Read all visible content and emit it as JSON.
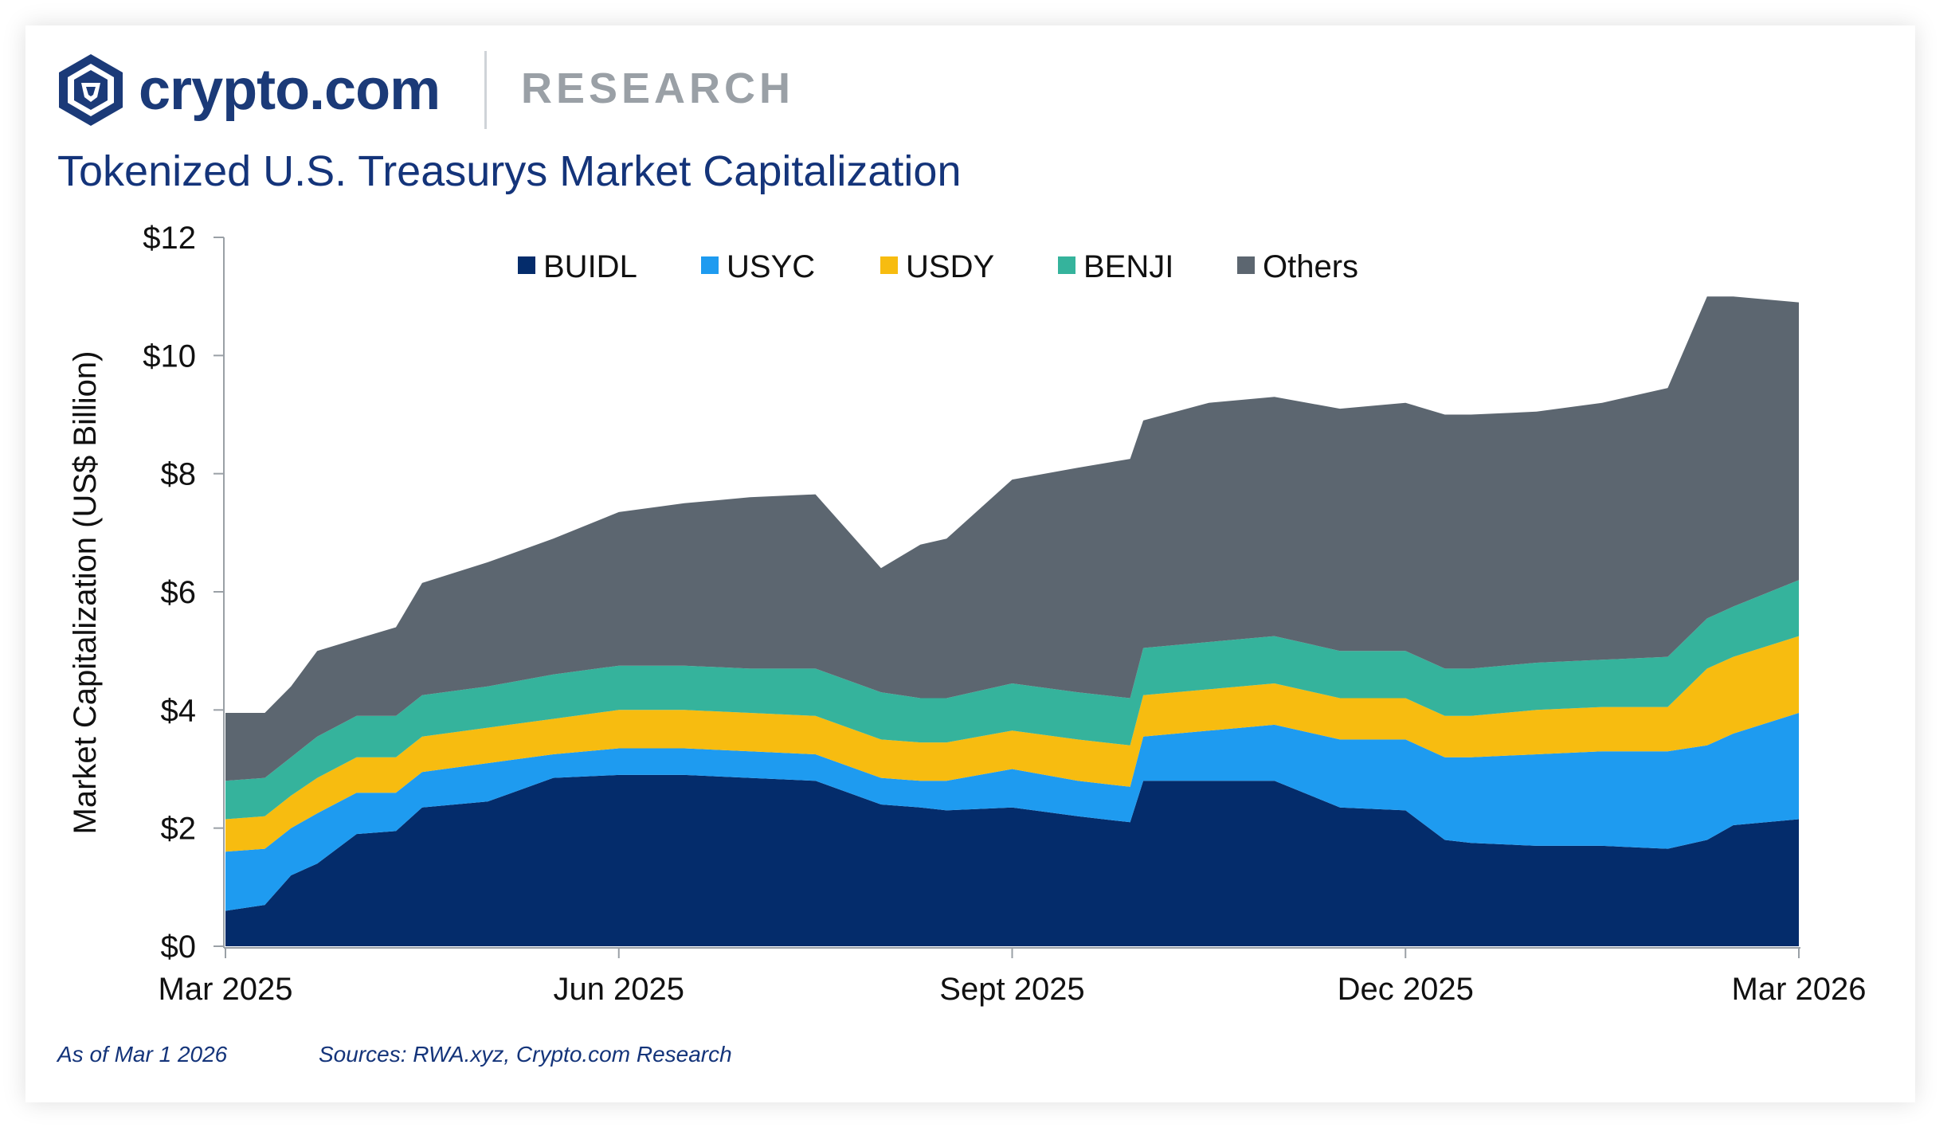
{
  "brand": {
    "name": "crypto.com",
    "section": "RESEARCH",
    "logo_icon": "crypto-com-lion-shield-icon"
  },
  "footer": {
    "as_of": "As of Mar 1 2026",
    "sources": "Sources: RWA.xyz, Crypto.com Research"
  },
  "chart_data": {
    "type": "area",
    "stacked": true,
    "title": "Tokenized U.S. Treasurys Market Capitalization",
    "ylabel": "Market Capitalization (US$ Billion)",
    "xlabel": "",
    "ylim": [
      0,
      12
    ],
    "yticks": [
      0,
      2,
      4,
      6,
      8,
      10,
      12
    ],
    "ytick_labels": [
      "$0",
      "$2",
      "$4",
      "$6",
      "$8",
      "$10",
      "$12"
    ],
    "xticks": [
      "Mar 2025",
      "Jun 2025",
      "Sept 2025",
      "Dec 2025",
      "Mar 2026"
    ],
    "xtick_positions": [
      0,
      3,
      6,
      9,
      12
    ],
    "x_unit": "months since Mar 2025",
    "legend_position": "top-center",
    "grid": false,
    "x": [
      0,
      0.3,
      0.5,
      0.7,
      1,
      1.3,
      1.5,
      2,
      2.5,
      3,
      3.5,
      4,
      4.5,
      5,
      5.3,
      5.5,
      6,
      6.5,
      6.9,
      7,
      7.5,
      8,
      8.5,
      9,
      9.3,
      9.5,
      10,
      10.5,
      11,
      11.3,
      11.5,
      12
    ],
    "series": [
      {
        "name": "BUIDL",
        "color": "#042c6b",
        "values": [
          0.6,
          0.7,
          1.2,
          1.4,
          1.9,
          1.95,
          2.35,
          2.45,
          2.85,
          2.9,
          2.9,
          2.85,
          2.8,
          2.4,
          2.35,
          2.3,
          2.35,
          2.2,
          2.1,
          2.8,
          2.8,
          2.8,
          2.35,
          2.3,
          1.8,
          1.75,
          1.7,
          1.7,
          1.65,
          1.8,
          2.05,
          2.15
        ]
      },
      {
        "name": "USYC",
        "color": "#1e9bf0",
        "values": [
          1.0,
          0.95,
          0.8,
          0.85,
          0.7,
          0.65,
          0.6,
          0.65,
          0.4,
          0.45,
          0.45,
          0.45,
          0.45,
          0.45,
          0.45,
          0.5,
          0.65,
          0.6,
          0.6,
          0.75,
          0.85,
          0.95,
          1.15,
          1.2,
          1.4,
          1.45,
          1.55,
          1.6,
          1.65,
          1.6,
          1.55,
          1.8
        ]
      },
      {
        "name": "USDY",
        "color": "#f7bc10",
        "values": [
          0.55,
          0.55,
          0.55,
          0.6,
          0.6,
          0.6,
          0.6,
          0.6,
          0.6,
          0.65,
          0.65,
          0.65,
          0.65,
          0.65,
          0.65,
          0.65,
          0.65,
          0.7,
          0.7,
          0.7,
          0.7,
          0.7,
          0.7,
          0.7,
          0.7,
          0.7,
          0.75,
          0.75,
          0.75,
          1.3,
          1.3,
          1.3
        ]
      },
      {
        "name": "BENJI",
        "color": "#35b39c",
        "values": [
          0.65,
          0.65,
          0.65,
          0.7,
          0.7,
          0.7,
          0.7,
          0.7,
          0.75,
          0.75,
          0.75,
          0.75,
          0.8,
          0.8,
          0.75,
          0.75,
          0.8,
          0.8,
          0.8,
          0.8,
          0.8,
          0.8,
          0.8,
          0.8,
          0.8,
          0.8,
          0.8,
          0.8,
          0.85,
          0.85,
          0.85,
          0.95
        ]
      },
      {
        "name": "Others",
        "color": "#5c6670",
        "values": [
          1.15,
          1.1,
          1.2,
          1.45,
          1.3,
          1.5,
          1.9,
          2.1,
          2.3,
          2.6,
          2.75,
          2.9,
          2.95,
          2.1,
          2.6,
          2.7,
          3.45,
          3.8,
          4.05,
          3.85,
          4.05,
          4.05,
          4.1,
          4.2,
          4.3,
          4.3,
          4.25,
          4.35,
          4.55,
          5.45,
          5.25,
          4.7
        ]
      }
    ]
  }
}
